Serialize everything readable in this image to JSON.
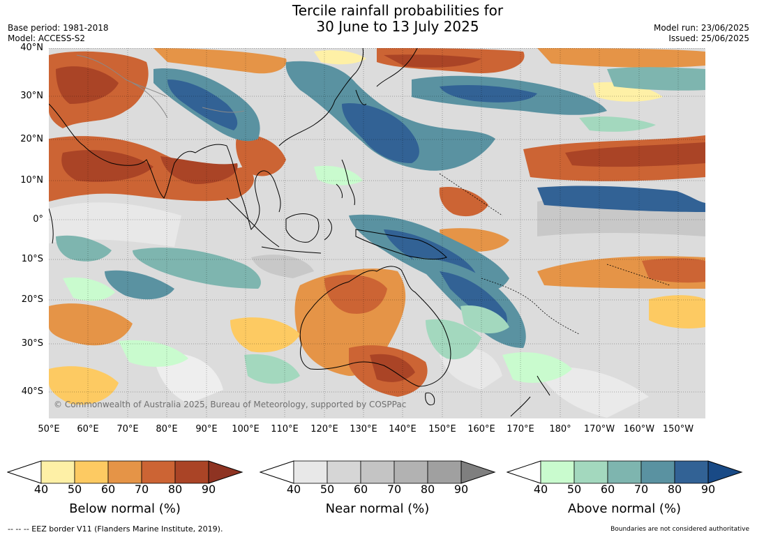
{
  "title_line1": "Tercile rainfall probabilities for",
  "title_line2": "30 June to 13 July 2025",
  "base_period": "Base period: 1981-2018",
  "model": "Model: ACCESS-S2",
  "model_run": "Model run: 23/06/2025",
  "issued": "Issued: 25/06/2025",
  "map": {
    "lat_range": [
      -46,
      40
    ],
    "lon_range": [
      50,
      217
    ],
    "lat_labels": [
      "40°N",
      "30°N",
      "20°N",
      "10°N",
      "0°",
      "10°S",
      "20°S",
      "30°S",
      "40°S"
    ],
    "lon_labels": [
      "50°E",
      "60°E",
      "70°E",
      "80°E",
      "90°E",
      "100°E",
      "110°E",
      "120°E",
      "130°E",
      "140°E",
      "150°E",
      "160°E",
      "170°E",
      "180°",
      "170°W",
      "160°W",
      "150°W"
    ],
    "credit": "© Commonwealth of Australia 2025, Bureau of Meteorology, supported by COSPPac",
    "background_color": "#dcdcdc",
    "grid_lines": "dotted"
  },
  "colorbars": [
    {
      "title": "Below normal (%)",
      "ticks": [
        "40",
        "50",
        "60",
        "70",
        "80",
        "90"
      ],
      "colors": [
        "#fef0a6",
        "#fdca62",
        "#e59447",
        "#cc6434",
        "#aa4426",
        "#8e3322"
      ]
    },
    {
      "title": "Near normal (%)",
      "ticks": [
        "40",
        "50",
        "60",
        "70",
        "80",
        "90"
      ],
      "colors": [
        "#e8e8e8",
        "#d6d6d6",
        "#c4c4c4",
        "#b2b2b2",
        "#a0a0a0",
        "#7f7f7f"
      ]
    },
    {
      "title": "Above normal (%)",
      "ticks": [
        "40",
        "50",
        "60",
        "70",
        "80",
        "90"
      ],
      "colors": [
        "#c9fbce",
        "#a3d8be",
        "#7eb5af",
        "#5a92a1",
        "#326295",
        "#194a86"
      ]
    }
  ],
  "footer_left": "--  --  -- EEZ border V11 (Flanders Marine Institute, 2019).",
  "footer_right": "Boundaries are not considered authoritative"
}
